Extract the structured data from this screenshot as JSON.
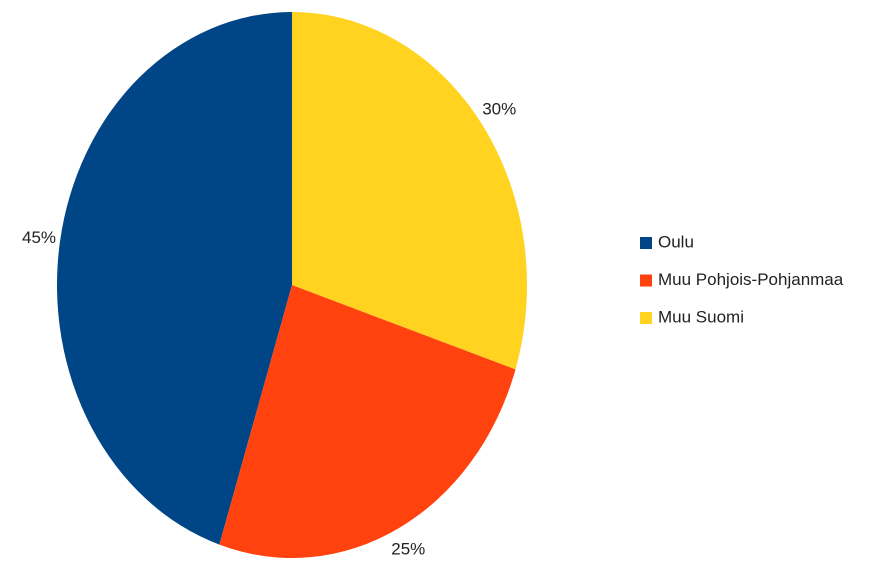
{
  "chart_data": {
    "type": "pie",
    "categories": [
      "Oulu",
      "Muu Pohjois-Pohjanmaa",
      "Muu Suomi"
    ],
    "values": [
      45,
      25,
      30
    ],
    "value_labels": [
      "45%",
      "25%",
      "30%"
    ],
    "colors": [
      "#004586",
      "#ff420e",
      "#ffd320"
    ],
    "legend": "right"
  }
}
